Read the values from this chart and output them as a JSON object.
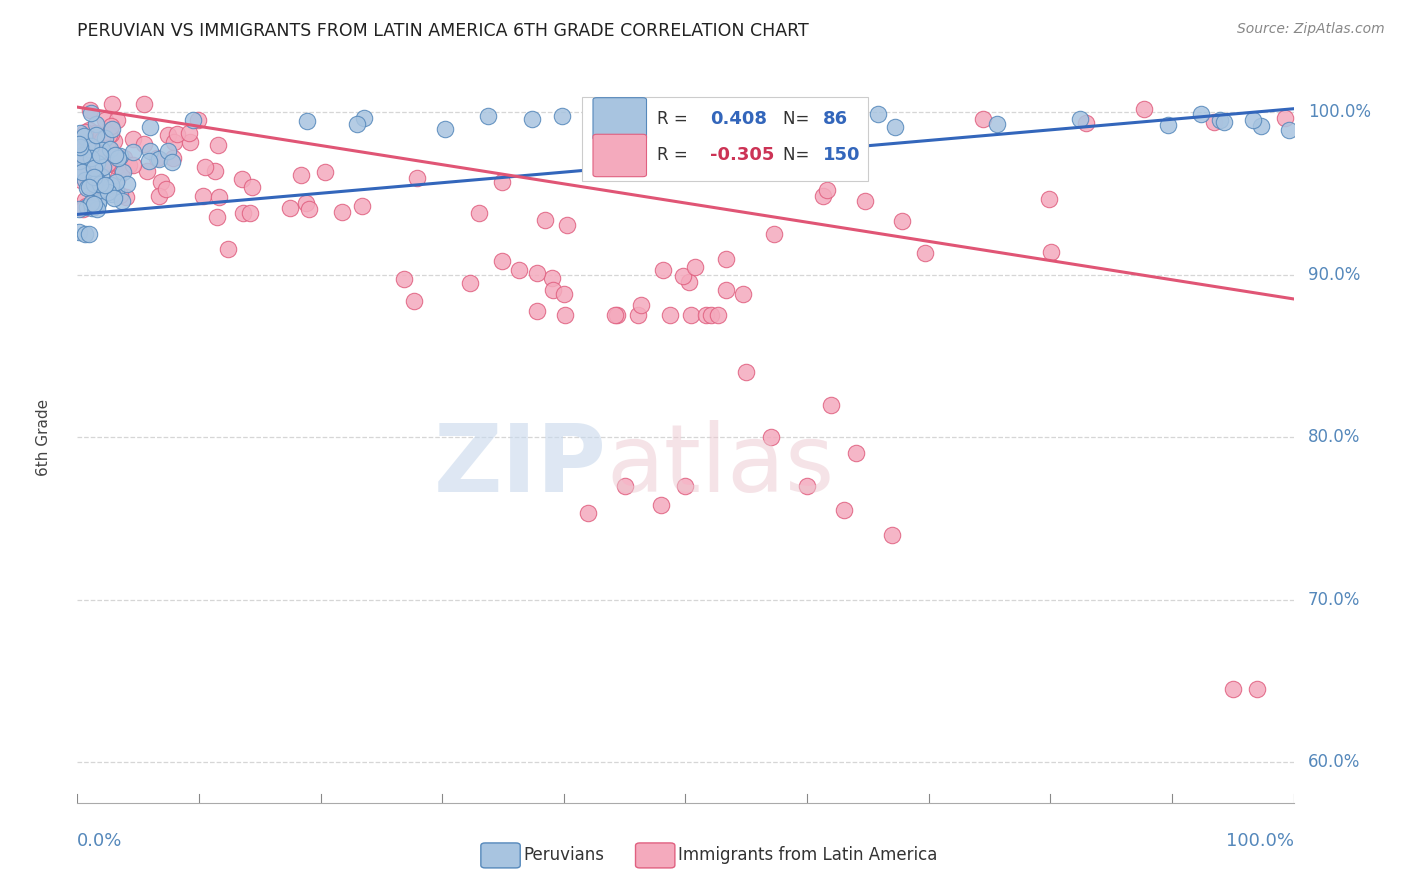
{
  "title": "PERUVIAN VS IMMIGRANTS FROM LATIN AMERICA 6TH GRADE CORRELATION CHART",
  "source": "Source: ZipAtlas.com",
  "ylabel": "6th Grade",
  "ylabel_right_ticks": [
    "100.0%",
    "90.0%",
    "80.0%",
    "70.0%",
    "60.0%"
  ],
  "ylabel_right_vals": [
    1.0,
    0.9,
    0.8,
    0.7,
    0.6
  ],
  "blue_color": "#A8C4E0",
  "pink_color": "#F4AABD",
  "blue_edge_color": "#5588BB",
  "pink_edge_color": "#E06080",
  "blue_line_color": "#3366BB",
  "pink_line_color": "#E05575",
  "background_color": "#FFFFFF",
  "grid_color": "#CCCCCC",
  "ymin": 0.575,
  "ymax": 1.025,
  "xmin": 0.0,
  "xmax": 1.0,
  "blue_trend": [
    0.937,
    1.002
  ],
  "pink_trend": [
    1.003,
    0.885
  ],
  "dashed_line_y": [
    1.0,
    0.9,
    0.8,
    0.7,
    0.6
  ]
}
